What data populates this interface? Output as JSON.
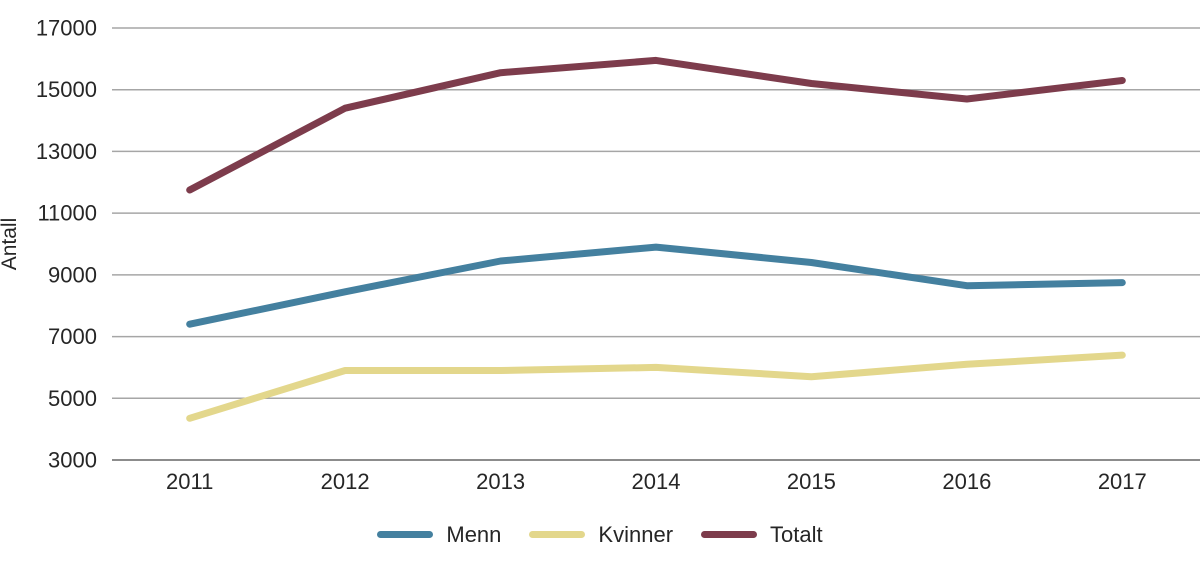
{
  "chart_data": {
    "type": "line",
    "title": "",
    "xlabel": "",
    "ylabel": "Antall",
    "categories": [
      "2011",
      "2012",
      "2013",
      "2014",
      "2015",
      "2016",
      "2017"
    ],
    "series": [
      {
        "name": "Menn",
        "color": "#44809F",
        "values": [
          7400,
          8450,
          9450,
          9900,
          9400,
          8650,
          8750
        ]
      },
      {
        "name": "Kvinner",
        "color": "#E3D78C",
        "values": [
          4350,
          5900,
          5900,
          6000,
          5700,
          6100,
          6400
        ]
      },
      {
        "name": "Totalt",
        "color": "#7D3C4C",
        "values": [
          11750,
          14400,
          15550,
          15950,
          15200,
          14700,
          15300
        ]
      }
    ],
    "ylim": [
      3000,
      17000
    ],
    "ytick_step": 2000,
    "yticks": [
      3000,
      5000,
      7000,
      9000,
      11000,
      13000,
      15000,
      17000
    ],
    "grid": true,
    "legend_position": "bottom"
  },
  "colors": {
    "gridline": "#A6A6A6",
    "axis_line": "#8C8C8C",
    "text": "#262626",
    "background": "#FFFFFF"
  }
}
